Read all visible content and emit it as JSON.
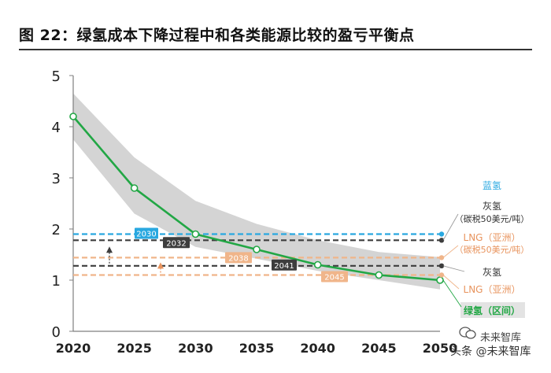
{
  "title": "图 22：绿氢成本下降过程中和各类能源比较的盈亏平衡点",
  "watermark": {
    "line1": "未来智库",
    "line2": "头条 @未来智库"
  },
  "colors": {
    "green": "#22a745",
    "band": "#d4d4d4",
    "blue": "#29a8e0",
    "dark": "#3d3d3d",
    "orange": "#f0b58a",
    "orange_dark": "#e8945e",
    "axis": "#7f7f7f"
  },
  "chart_data": {
    "type": "line",
    "title": "绿氢成本下降过程中和各类能源比较的盈亏平衡点",
    "xlabel": "",
    "ylabel": "",
    "xlim": [
      2020,
      2050
    ],
    "ylim": [
      0,
      5
    ],
    "xticks": [
      2020,
      2025,
      2030,
      2035,
      2040,
      2045,
      2050
    ],
    "yticks": [
      0,
      1,
      2,
      3,
      4,
      5
    ],
    "series": [
      {
        "name": "绿氢（区间）",
        "x": [
          2020,
          2025,
          2030,
          2035,
          2040,
          2045,
          2050
        ],
        "y": [
          4.2,
          2.8,
          1.9,
          1.6,
          1.3,
          1.1,
          1.0
        ],
        "band_upper": [
          4.65,
          3.4,
          2.55,
          2.1,
          1.78,
          1.55,
          1.45
        ],
        "band_lower": [
          3.75,
          2.3,
          1.65,
          1.42,
          1.18,
          1.0,
          0.82
        ]
      }
    ],
    "reference_lines": [
      {
        "name": "蓝氢",
        "y": 1.9,
        "color": "#29a8e0",
        "crossing_year": "2030"
      },
      {
        "name": "灰氢（碳税50美元/吨）",
        "y": 1.78,
        "color": "#3d3d3d",
        "crossing_year": "2032"
      },
      {
        "name": "LNG（亚洲）（碳税50美元/吨）",
        "y": 1.44,
        "color": "#f0b58a",
        "crossing_year": "2038"
      },
      {
        "name": "灰氢",
        "y": 1.28,
        "color": "#3d3d3d",
        "crossing_year": "2041"
      },
      {
        "name": "LNG（亚洲）",
        "y": 1.1,
        "color": "#f0b58a",
        "crossing_year": "2045"
      }
    ],
    "legend": {
      "blue_h2": "蓝氢",
      "grey_h2_tax_l1": "灰氢",
      "grey_h2_tax_l2": "（碳税50美元/吨）",
      "lng_tax_l1": "LNG（亚洲）",
      "lng_tax_l2": "（碳税50美元/吨）",
      "grey_h2": "灰氢",
      "lng": "LNG（亚洲）",
      "green_h2": "绿氢（区间）"
    }
  }
}
